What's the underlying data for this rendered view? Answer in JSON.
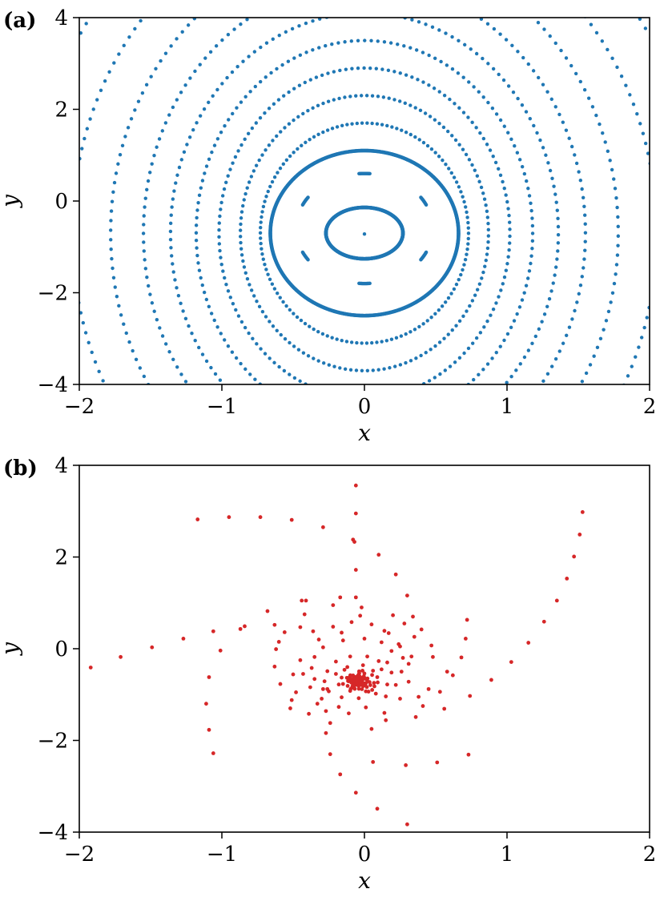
{
  "chart_data": [
    {
      "type": "scatter",
      "panel_label": "(a)",
      "xlabel": "x",
      "ylabel": "y",
      "xlim": [
        -2,
        2
      ],
      "ylim": [
        -4,
        4
      ],
      "xticks": [
        -2,
        -1,
        0,
        1,
        2
      ],
      "yticks": [
        -4,
        -2,
        0,
        2,
        4
      ],
      "xtick_labels": [
        "−2",
        "−1",
        "0",
        "1",
        "2"
      ],
      "ytick_labels": [
        "−4",
        "−2",
        "0",
        "2",
        "4"
      ],
      "grid": false,
      "marker_color": "#1f77b4",
      "center": [
        0,
        -0.7
      ],
      "fixed_point": [
        0,
        -0.72
      ],
      "curves": [
        {
          "kind": "closed",
          "rx": 0.27,
          "ry": 0.56,
          "cy": -0.7,
          "n": 520
        },
        {
          "kind": "island-chain",
          "rx": 0.48,
          "ry": 1.2,
          "cy": -0.6,
          "n_islands": 6,
          "arc_span_deg": 9
        },
        {
          "kind": "closed",
          "rx": 0.66,
          "ry": 1.8,
          "cy": -0.7,
          "n": 820
        },
        {
          "kind": "dotted",
          "rx": 0.73,
          "ry": 2.4,
          "cy": -0.7,
          "n": 130
        },
        {
          "kind": "dotted",
          "rx": 0.87,
          "ry": 3.0,
          "cy": -0.7,
          "n": 140
        },
        {
          "kind": "dotted",
          "rx": 1.02,
          "ry": 3.6,
          "cy": -0.7,
          "n": 150
        },
        {
          "kind": "dotted",
          "rx": 1.18,
          "ry": 4.2,
          "cy": -0.7,
          "n": 160
        },
        {
          "kind": "dotted",
          "rx": 1.36,
          "ry": 4.8,
          "cy": -0.7,
          "n": 170
        },
        {
          "kind": "dotted",
          "rx": 1.55,
          "ry": 5.5,
          "cy": -0.7,
          "n": 180
        },
        {
          "kind": "dotted",
          "rx": 1.78,
          "ry": 6.3,
          "cy": -0.7,
          "n": 190
        },
        {
          "kind": "dotted",
          "rx": 2.05,
          "ry": 7.2,
          "cy": -0.7,
          "n": 200
        },
        {
          "kind": "dotted",
          "rx": 2.35,
          "ry": 8.2,
          "cy": -0.7,
          "n": 210
        }
      ]
    },
    {
      "type": "scatter",
      "panel_label": "(b)",
      "xlabel": "x",
      "ylabel": "y",
      "xlim": [
        -2,
        2
      ],
      "ylim": [
        -4,
        4
      ],
      "xticks": [
        -2,
        -1,
        0,
        1,
        2
      ],
      "yticks": [
        -4,
        -2,
        0,
        2,
        4
      ],
      "xtick_labels": [
        "−2",
        "−1",
        "0",
        "1",
        "2"
      ],
      "ytick_labels": [
        "−4",
        "−2",
        "0",
        "2",
        "4"
      ],
      "grid": false,
      "marker_color": "#d62728",
      "cluster": {
        "center": [
          -0.05,
          -0.7
        ],
        "sigma_x": 0.06,
        "sigma_y": 0.12,
        "n": 140
      },
      "points": [
        [
          -1.92,
          -0.41
        ],
        [
          -1.71,
          -0.18
        ],
        [
          -1.49,
          0.03
        ],
        [
          -1.27,
          0.22
        ],
        [
          -1.06,
          0.38
        ],
        [
          -0.84,
          0.49
        ],
        [
          -0.63,
          0.52
        ],
        [
          -0.45,
          0.47
        ],
        [
          -1.17,
          2.82
        ],
        [
          -0.95,
          2.87
        ],
        [
          -0.73,
          2.87
        ],
        [
          -0.51,
          2.81
        ],
        [
          -0.29,
          2.65
        ],
        [
          -0.08,
          2.38
        ],
        [
          -0.06,
          3.56
        ],
        [
          -0.06,
          2.95
        ],
        [
          -0.07,
          2.33
        ],
        [
          -0.06,
          1.72
        ],
        [
          -0.06,
          1.12
        ],
        [
          1.53,
          2.98
        ],
        [
          1.51,
          2.49
        ],
        [
          1.47,
          2.01
        ],
        [
          1.42,
          1.53
        ],
        [
          1.35,
          1.05
        ],
        [
          1.26,
          0.59
        ],
        [
          1.15,
          0.13
        ],
        [
          1.03,
          -0.29
        ],
        [
          0.89,
          -0.68
        ],
        [
          0.74,
          -1.03
        ],
        [
          0.56,
          -1.31
        ],
        [
          0.36,
          -1.49
        ],
        [
          0.15,
          -1.56
        ],
        [
          -1.06,
          -2.28
        ],
        [
          -1.09,
          -1.77
        ],
        [
          -1.11,
          -1.2
        ],
        [
          -1.09,
          -0.62
        ],
        [
          -1.01,
          -0.04
        ],
        [
          -0.87,
          0.43
        ],
        [
          -0.68,
          0.82
        ],
        [
          -0.44,
          1.05
        ],
        [
          -0.17,
          1.12
        ],
        [
          0.3,
          -3.83
        ],
        [
          0.09,
          -3.49
        ],
        [
          -0.06,
          -3.14
        ],
        [
          -0.17,
          -2.74
        ],
        [
          -0.24,
          -2.3
        ],
        [
          -0.27,
          -1.84
        ],
        [
          -0.27,
          -1.36
        ],
        [
          -0.26,
          -0.88
        ],
        [
          0.73,
          -2.31
        ],
        [
          0.51,
          -2.48
        ],
        [
          0.29,
          -2.54
        ],
        [
          0.06,
          -2.47
        ],
        [
          -0.41,
          1.05
        ],
        [
          -0.22,
          0.95
        ],
        [
          -0.03,
          0.72
        ],
        [
          0.14,
          0.39
        ],
        [
          0.25,
          0.05
        ],
        [
          0.31,
          -0.33
        ],
        [
          0.31,
          -0.72
        ],
        [
          0.25,
          -1.09
        ],
        [
          0.14,
          -1.4
        ],
        [
          -0.56,
          0.36
        ],
        [
          -0.62,
          -0.01
        ],
        [
          -0.63,
          -0.39
        ],
        [
          -0.59,
          -0.77
        ],
        [
          -0.51,
          -1.12
        ],
        [
          -0.39,
          -1.42
        ],
        [
          -0.24,
          -1.62
        ],
        [
          0.72,
          0.63
        ],
        [
          0.71,
          0.22
        ],
        [
          0.68,
          -0.19
        ],
        [
          0.62,
          -0.58
        ],
        [
          0.53,
          -0.94
        ],
        [
          0.41,
          -1.25
        ],
        [
          0.1,
          2.05
        ],
        [
          0.22,
          1.62
        ],
        [
          0.3,
          1.16
        ],
        [
          0.34,
          0.7
        ],
        [
          0.35,
          0.26
        ],
        [
          0.33,
          -0.17
        ],
        [
          -0.32,
          0.2
        ],
        [
          -0.22,
          0.48
        ],
        [
          -0.09,
          0.58
        ],
        [
          0.05,
          0.53
        ],
        [
          0.17,
          0.34
        ],
        [
          -0.45,
          -0.25
        ],
        [
          -0.43,
          -0.55
        ],
        [
          -0.38,
          -0.84
        ],
        [
          -0.3,
          -1.09
        ],
        [
          -0.18,
          -1.27
        ],
        [
          0.24,
          0.1
        ],
        [
          0.27,
          -0.2
        ],
        [
          0.26,
          -0.5
        ],
        [
          0.22,
          -0.79
        ],
        [
          0.15,
          -1.04
        ],
        [
          -0.29,
          0.03
        ],
        [
          -0.35,
          -0.18
        ],
        [
          -0.37,
          -0.42
        ],
        [
          -0.35,
          -0.66
        ],
        [
          -0.29,
          -0.88
        ],
        [
          -0.15,
          0.18
        ],
        [
          0.0,
          0.22
        ],
        [
          0.12,
          0.14
        ],
        [
          0.19,
          -0.05
        ],
        [
          0.16,
          -0.3
        ],
        [
          0.19,
          -0.52
        ],
        [
          0.16,
          -0.78
        ],
        [
          0.08,
          -0.98
        ],
        [
          -0.04,
          -1.08
        ],
        [
          -0.16,
          -1.06
        ],
        [
          -0.25,
          -0.93
        ],
        [
          -0.28,
          -0.71
        ],
        [
          -0.26,
          -0.49
        ],
        [
          -0.2,
          -0.28
        ],
        [
          -0.1,
          -0.17
        ],
        [
          0.02,
          -0.17
        ],
        [
          0.1,
          -0.27
        ],
        [
          0.12,
          -0.45
        ],
        [
          0.09,
          -0.62
        ],
        [
          -0.2,
          -0.55
        ],
        [
          -0.18,
          -0.78
        ],
        [
          -0.1,
          -0.92
        ],
        [
          0.01,
          -0.93
        ],
        [
          0.07,
          -0.82
        ],
        [
          -0.12,
          -0.4
        ],
        [
          -0.01,
          -0.36
        ],
        [
          0.06,
          -0.48
        ],
        [
          -0.16,
          -0.63
        ],
        [
          -0.14,
          -0.46
        ],
        [
          0.4,
          0.42
        ],
        [
          0.47,
          0.07
        ],
        [
          0.45,
          -0.88
        ],
        [
          -0.5,
          -0.56
        ],
        [
          -0.48,
          -0.95
        ],
        [
          -0.36,
          0.38
        ],
        [
          -0.02,
          0.9
        ],
        [
          0.2,
          0.73
        ],
        [
          -0.6,
          0.15
        ],
        [
          0.58,
          -0.5
        ],
        [
          0.01,
          -1.28
        ],
        [
          -0.11,
          -1.41
        ],
        [
          0.48,
          -0.18
        ],
        [
          -0.42,
          0.75
        ],
        [
          0.05,
          -1.75
        ],
        [
          -0.33,
          -1.2
        ],
        [
          0.28,
          0.55
        ],
        [
          -0.52,
          -1.3
        ],
        [
          0.38,
          -1.05
        ],
        [
          -0.16,
          0.35
        ]
      ]
    }
  ]
}
